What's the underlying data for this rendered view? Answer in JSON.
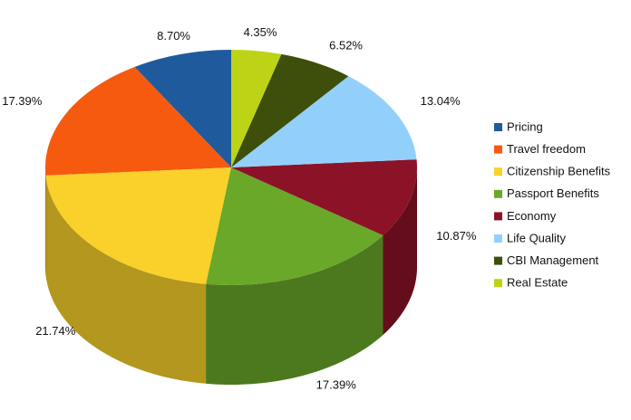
{
  "chart_data": {
    "type": "pie",
    "categories": [
      "Pricing",
      "Travel freedom",
      "Citizenship Benefits",
      "Passport Benefits",
      "Economy",
      "Life Quality",
      "CBI Management",
      "Real Estate"
    ],
    "values": [
      8.7,
      17.39,
      21.74,
      17.39,
      10.87,
      13.04,
      6.52,
      4.35
    ],
    "value_labels": [
      "8.70%",
      "17.39%",
      "21.74%",
      "17.39%",
      "10.87%",
      "13.04%",
      "6.52%",
      "4.35%"
    ],
    "colors": [
      "#1f5b9c",
      "#f55a0f",
      "#f9d12a",
      "#6aa82a",
      "#8c1228",
      "#92d0fb",
      "#3d4f0a",
      "#bcd415"
    ],
    "legend": "right"
  }
}
